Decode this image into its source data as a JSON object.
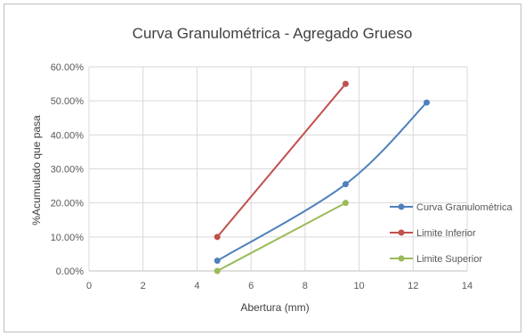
{
  "chart_data": {
    "type": "scatter",
    "title": "Curva Granulométrica - Agregado Grueso",
    "xlabel": "Abertura (mm)",
    "ylabel": "%Acumulado que pasa",
    "xlim": [
      0,
      14
    ],
    "ylim": [
      0,
      60
    ],
    "x_ticks": [
      0,
      2,
      4,
      6,
      8,
      10,
      12,
      14
    ],
    "x_tick_labels": [
      "0",
      "2",
      "4",
      "6",
      "8",
      "10",
      "12",
      "14"
    ],
    "y_ticks": [
      0,
      10,
      20,
      30,
      40,
      50,
      60
    ],
    "y_tick_labels": [
      "0.00%",
      "10.00%",
      "20.00%",
      "30.00%",
      "40.00%",
      "50.00%",
      "60.00%"
    ],
    "grid": true,
    "legend_position": "right",
    "series": [
      {
        "name": "Curva Granulométrica",
        "color": "#4f81bd",
        "x": [
          4.75,
          9.5,
          12.5
        ],
        "y": [
          3,
          25.5,
          49.5
        ]
      },
      {
        "name": "Limite Inferior",
        "color": "#c0504d",
        "x": [
          4.75,
          9.5
        ],
        "y": [
          10,
          55
        ]
      },
      {
        "name": "Limite Superior",
        "color": "#9bbb59",
        "x": [
          4.75,
          9.5
        ],
        "y": [
          0,
          20
        ]
      }
    ]
  }
}
